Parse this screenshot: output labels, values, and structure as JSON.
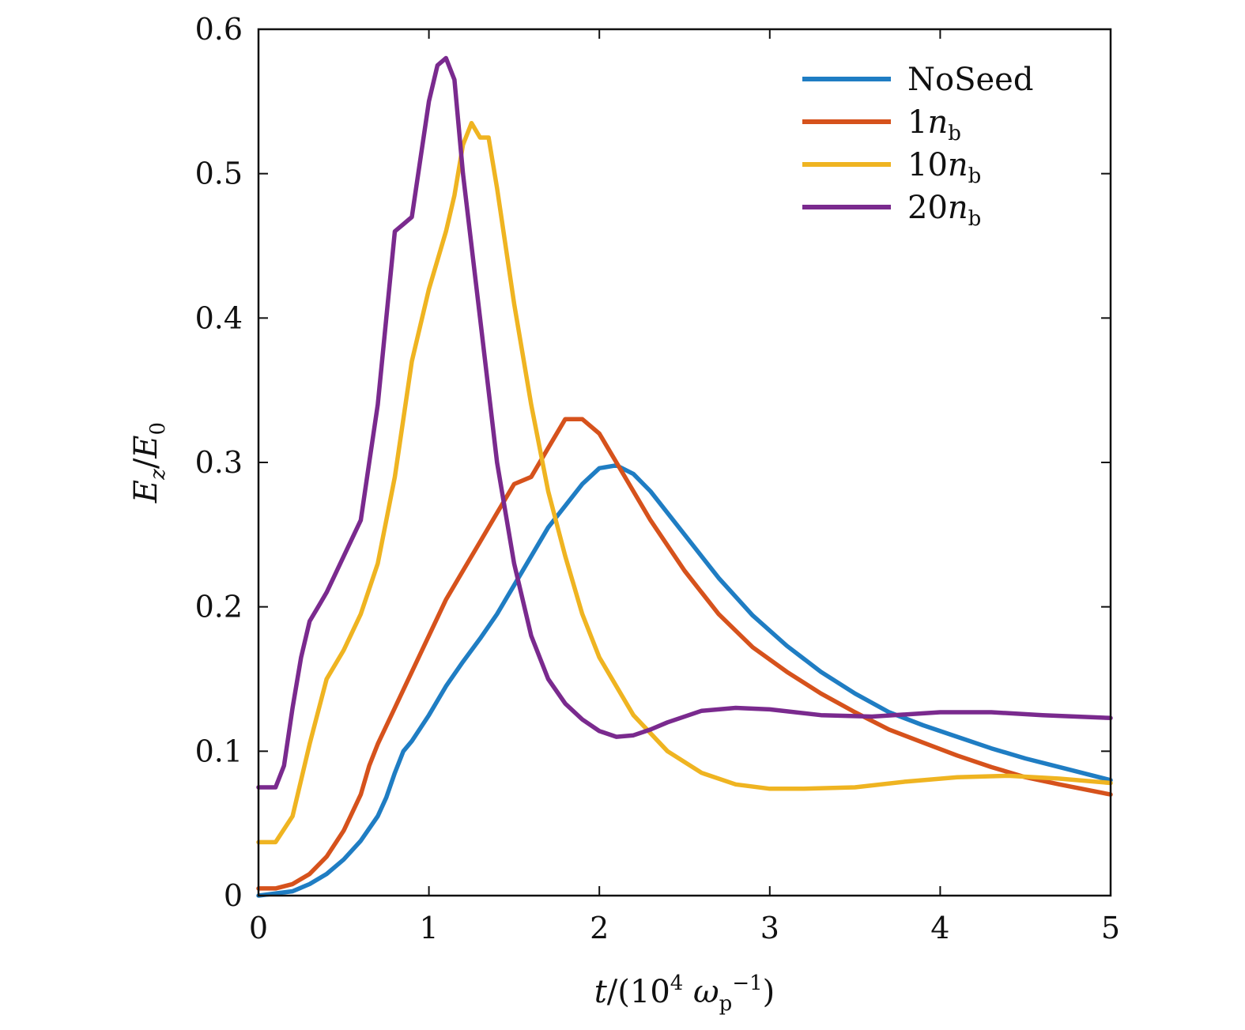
{
  "chart_data": {
    "type": "line",
    "xlabel": {
      "var": "t",
      "text": "/(10",
      "exp": "4",
      "sym": " ω",
      "sub": "p",
      "sup": "−1",
      "close": ")"
    },
    "ylabel": {
      "var": "E",
      "sub1": "z",
      "mid": "/",
      "var2": "E",
      "sub2": "0"
    },
    "xlim": [
      0,
      5
    ],
    "ylim": [
      0,
      0.6
    ],
    "xticks": [
      0,
      1,
      2,
      3,
      4,
      5
    ],
    "yticks": [
      0,
      0.1,
      0.2,
      0.3,
      0.4,
      0.5,
      0.6
    ],
    "x_tick_labels": [
      "0",
      "1",
      "2",
      "3",
      "4",
      "5"
    ],
    "y_tick_labels": [
      "0",
      "0.1",
      "0.2",
      "0.3",
      "0.4",
      "0.5",
      "0.6"
    ],
    "grid": false,
    "legend_position": "top-right",
    "series": [
      {
        "name": "NoSeed",
        "label_main": "NoSeed",
        "label_sub": "",
        "color": "#1f7dc3",
        "x": [
          0,
          0.2,
          0.3,
          0.4,
          0.5,
          0.6,
          0.7,
          0.75,
          0.8,
          0.85,
          0.9,
          1.0,
          1.1,
          1.2,
          1.3,
          1.4,
          1.5,
          1.6,
          1.7,
          1.8,
          1.9,
          2.0,
          2.1,
          2.2,
          2.3,
          2.5,
          2.7,
          2.9,
          3.1,
          3.3,
          3.5,
          3.7,
          3.9,
          4.1,
          4.3,
          4.5,
          4.7,
          5.0
        ],
        "y": [
          0.0,
          0.003,
          0.008,
          0.015,
          0.025,
          0.038,
          0.055,
          0.068,
          0.085,
          0.1,
          0.107,
          0.125,
          0.145,
          0.162,
          0.178,
          0.195,
          0.215,
          0.235,
          0.255,
          0.27,
          0.285,
          0.296,
          0.298,
          0.292,
          0.28,
          0.25,
          0.22,
          0.194,
          0.173,
          0.155,
          0.14,
          0.127,
          0.118,
          0.11,
          0.102,
          0.095,
          0.089,
          0.08
        ]
      },
      {
        "name": "1nb",
        "label_main": "1",
        "label_sub": "b",
        "color": "#d6521c",
        "x": [
          0,
          0.1,
          0.2,
          0.3,
          0.4,
          0.5,
          0.6,
          0.65,
          0.7,
          0.8,
          0.9,
          1.0,
          1.1,
          1.2,
          1.3,
          1.4,
          1.5,
          1.6,
          1.7,
          1.8,
          1.9,
          2.0,
          2.1,
          2.2,
          2.3,
          2.5,
          2.7,
          2.9,
          3.1,
          3.3,
          3.5,
          3.7,
          3.9,
          4.1,
          4.3,
          4.5,
          4.7,
          5.0
        ],
        "y": [
          0.005,
          0.005,
          0.008,
          0.015,
          0.027,
          0.045,
          0.07,
          0.09,
          0.105,
          0.13,
          0.155,
          0.18,
          0.205,
          0.225,
          0.245,
          0.265,
          0.285,
          0.29,
          0.31,
          0.33,
          0.33,
          0.32,
          0.3,
          0.28,
          0.26,
          0.225,
          0.195,
          0.172,
          0.155,
          0.14,
          0.127,
          0.115,
          0.106,
          0.097,
          0.089,
          0.082,
          0.077,
          0.07
        ]
      },
      {
        "name": "10nb",
        "label_main": "10",
        "label_sub": "b",
        "color": "#efb421",
        "x": [
          0,
          0.1,
          0.2,
          0.3,
          0.4,
          0.5,
          0.6,
          0.7,
          0.8,
          0.9,
          1.0,
          1.1,
          1.15,
          1.2,
          1.25,
          1.3,
          1.35,
          1.4,
          1.5,
          1.6,
          1.7,
          1.8,
          1.9,
          2.0,
          2.2,
          2.4,
          2.6,
          2.8,
          3.0,
          3.2,
          3.5,
          3.8,
          4.1,
          4.4,
          4.7,
          5.0
        ],
        "y": [
          0.037,
          0.037,
          0.055,
          0.105,
          0.15,
          0.17,
          0.195,
          0.23,
          0.29,
          0.37,
          0.42,
          0.46,
          0.485,
          0.52,
          0.535,
          0.525,
          0.525,
          0.49,
          0.41,
          0.34,
          0.28,
          0.235,
          0.195,
          0.165,
          0.125,
          0.1,
          0.085,
          0.077,
          0.074,
          0.074,
          0.075,
          0.079,
          0.082,
          0.083,
          0.081,
          0.078
        ]
      },
      {
        "name": "20nb",
        "label_main": "20",
        "label_sub": "b",
        "color": "#7a2a8e",
        "x": [
          0,
          0.1,
          0.15,
          0.2,
          0.25,
          0.3,
          0.35,
          0.4,
          0.5,
          0.6,
          0.65,
          0.7,
          0.75,
          0.8,
          0.85,
          0.9,
          0.95,
          1.0,
          1.05,
          1.1,
          1.15,
          1.2,
          1.3,
          1.4,
          1.5,
          1.6,
          1.7,
          1.8,
          1.9,
          2.0,
          2.1,
          2.2,
          2.3,
          2.4,
          2.6,
          2.8,
          3.0,
          3.3,
          3.6,
          4.0,
          4.3,
          4.6,
          5.0
        ],
        "y": [
          0.075,
          0.075,
          0.09,
          0.13,
          0.165,
          0.19,
          0.2,
          0.21,
          0.235,
          0.26,
          0.3,
          0.34,
          0.4,
          0.46,
          0.465,
          0.47,
          0.51,
          0.55,
          0.575,
          0.58,
          0.565,
          0.5,
          0.4,
          0.3,
          0.23,
          0.18,
          0.15,
          0.133,
          0.122,
          0.114,
          0.11,
          0.111,
          0.115,
          0.12,
          0.128,
          0.13,
          0.129,
          0.125,
          0.124,
          0.127,
          0.127,
          0.125,
          0.123
        ]
      }
    ]
  }
}
